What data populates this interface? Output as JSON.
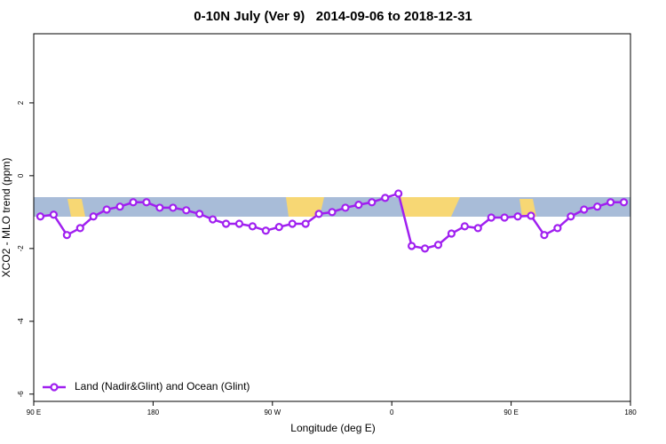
{
  "chart_data": {
    "type": "line",
    "title": "0-10N July (Ver 9)   2014-09-06 to 2018-12-31",
    "x_label": "Longitude (deg E)",
    "y_label": "XCO2 - MLO trend (ppm)",
    "xlim": [
      90,
      540
    ],
    "xticks": [
      {
        "value": 90,
        "label": "90 E"
      },
      {
        "value": 180,
        "label": "180"
      },
      {
        "value": 270,
        "label": "90 W"
      },
      {
        "value": 360,
        "label": "0"
      },
      {
        "value": 450,
        "label": "90 E"
      },
      {
        "value": 540,
        "label": "180"
      }
    ],
    "ylim": [
      -6.2,
      3.9
    ],
    "yticks": [
      -6,
      -4,
      -2,
      0,
      2
    ],
    "legend": "bottom-left",
    "x": [
      95,
      105,
      115,
      125,
      135,
      145,
      155,
      165,
      175,
      185,
      195,
      205,
      215,
      225,
      235,
      245,
      255,
      265,
      275,
      285,
      295,
      305,
      315,
      325,
      335,
      345,
      355,
      365,
      375,
      385,
      395,
      405,
      415,
      425,
      435,
      445,
      455,
      465,
      475,
      485,
      495,
      505,
      515,
      525,
      535
    ],
    "series": [
      {
        "name": "Land (Nadir&Glint) and Ocean (Glint)",
        "color": "#a020f0",
        "values": [
          -1.12,
          -1.07,
          -1.63,
          -1.44,
          -1.12,
          -0.93,
          -0.85,
          -0.73,
          -0.73,
          -0.88,
          -0.88,
          -0.95,
          -1.05,
          -1.2,
          -1.32,
          -1.32,
          -1.39,
          -1.51,
          -1.41,
          -1.32,
          -1.32,
          -1.05,
          -1.0,
          -0.88,
          -0.8,
          -0.73,
          -0.61,
          -0.49,
          -1.93,
          -2.0,
          -1.9,
          -1.59,
          -1.39,
          -1.44,
          -1.15,
          -1.15,
          -1.12,
          -1.1,
          -1.63,
          -1.44,
          -1.12,
          -0.93,
          -0.85,
          -0.73,
          -0.73
        ]
      }
    ]
  }
}
